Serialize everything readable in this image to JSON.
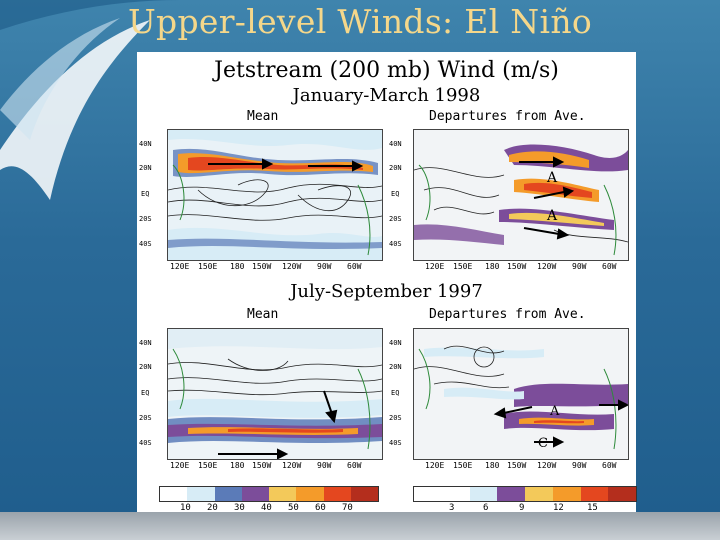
{
  "slide": {
    "title": "Upper-level Winds: El Niño"
  },
  "figure": {
    "title": "Jetstream (200 mb) Wind (m/s)",
    "season1": "January-March 1998",
    "season2": "July-September 1997",
    "mean_label": "Mean",
    "departures_label": "Departures from Ave.",
    "lat_labels": [
      "40N",
      "20N",
      "EQ",
      "20S",
      "40S"
    ],
    "lon_labels": [
      "120E",
      "150E",
      "180",
      "150W",
      "120W",
      "90W",
      "60W"
    ],
    "mean_scale": [
      "10",
      "20",
      "30",
      "40",
      "50",
      "60",
      "70"
    ],
    "departure_scale": [
      "3",
      "6",
      "9",
      "12",
      "15"
    ],
    "annotation_A": "A",
    "annotation_C": "C",
    "colors": {
      "scale": [
        "#ffffff",
        "#d7ecf6",
        "#5b7bb8",
        "#7c4d9a",
        "#f3c95a",
        "#f49b2a",
        "#e4471f",
        "#b42e1d"
      ]
    }
  }
}
